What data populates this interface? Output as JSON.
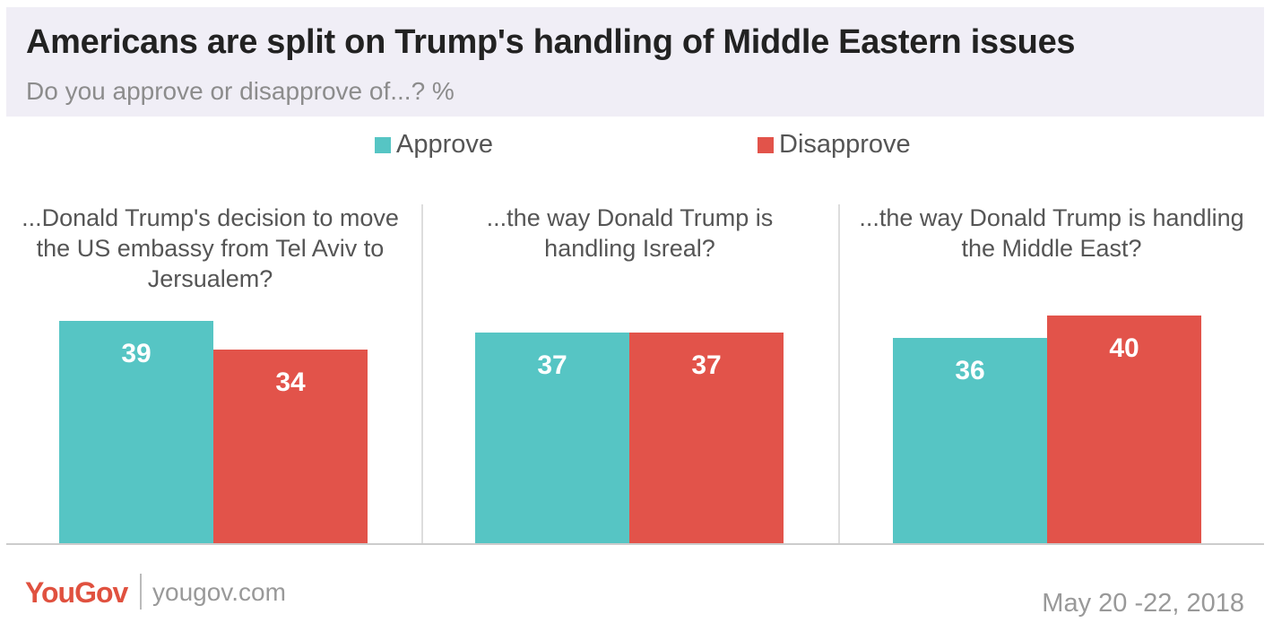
{
  "header": {
    "title": "Americans are split on Trump's handling of Middle Eastern issues",
    "subtitle": "Do you approve or disapprove of...? %"
  },
  "colors": {
    "approve": "#56c5c4",
    "disapprove": "#e2534a",
    "header_bg": "#f0eef6"
  },
  "chart_data": {
    "type": "bar",
    "title": "Americans are split on Trump's handling of Middle Eastern issues",
    "subtitle": "Do you approve or disapprove of...? %",
    "legend": [
      "Approve",
      "Disapprove"
    ],
    "legend_position": "top",
    "grid": false,
    "ylim": [
      0,
      40
    ],
    "panels": [
      {
        "title": "...Donald Trump's decision to move the US embassy from Tel Aviv to Jersualem?",
        "series": [
          {
            "name": "Approve",
            "value": 39
          },
          {
            "name": "Disapprove",
            "value": 34
          }
        ]
      },
      {
        "title": "...the way Donald Trump is handling Isreal?",
        "series": [
          {
            "name": "Approve",
            "value": 37
          },
          {
            "name": "Disapprove",
            "value": 37
          }
        ]
      },
      {
        "title": "...the way Donald Trump is handling the Middle East?",
        "series": [
          {
            "name": "Approve",
            "value": 36
          },
          {
            "name": "Disapprove",
            "value": 40
          }
        ]
      }
    ]
  },
  "footer": {
    "logo": "YouGov",
    "site": "yougov.com",
    "date": "May 20 -22, 2018"
  }
}
